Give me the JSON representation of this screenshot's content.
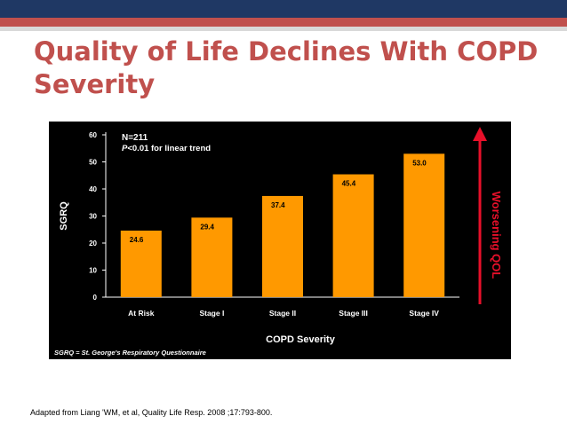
{
  "slide": {
    "title": "Quality of Life Declines With COPD Severity",
    "footnote": "Adapted from Liang 'WM, et al, Quality Life Resp. 2008 ;17:793-800."
  },
  "colors": {
    "bar": "#ff9900",
    "title": "#c0504d",
    "arrow": "#e8102a",
    "panel": "#000000"
  },
  "chart_data": {
    "type": "bar",
    "title": "",
    "xlabel": "COPD Severity",
    "ylabel": "SGRQ",
    "categories": [
      "At Risk",
      "Stage I",
      "Stage II",
      "Stage III",
      "Stage IV"
    ],
    "values": [
      24.6,
      29.4,
      37.4,
      45.4,
      53.0
    ],
    "value_labels": [
      "24.6",
      "29.4",
      "37.4",
      "45.4",
      "53.0"
    ],
    "ylim": [
      0,
      60
    ],
    "yticks": [
      0,
      10,
      20,
      30,
      40,
      50,
      60
    ],
    "grid": false,
    "legend": "none",
    "annotations": {
      "n": "N=211",
      "p_prefix": "P",
      "p_rest": "<0.01 for linear trend",
      "arrow_label": "Worsening QOL",
      "abbreviation_note": "SGRQ = St. George's Respiratory Questionnaire"
    }
  }
}
